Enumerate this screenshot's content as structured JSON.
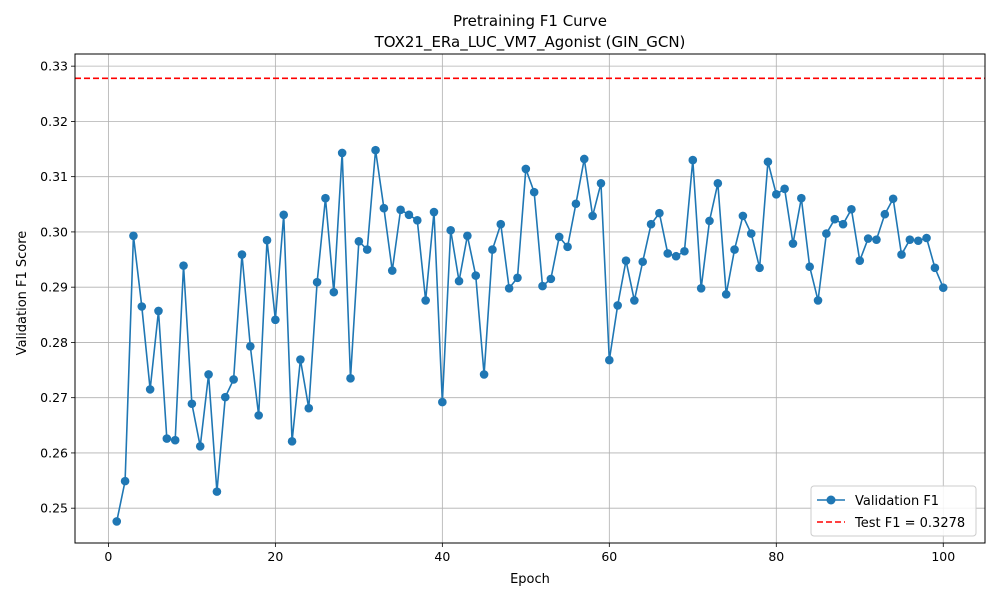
{
  "chart_data": {
    "type": "line",
    "title": "Pretraining F1 Curve",
    "subtitle": "TOX21_ERa_LUC_VM7_Agonist (GIN_GCN)",
    "xlabel": "Epoch",
    "ylabel": "Validation F1 Score",
    "xlim": [
      -4,
      105
    ],
    "ylim": [
      0.2437,
      0.3322
    ],
    "xticks": [
      0,
      20,
      40,
      60,
      80,
      100
    ],
    "yticks": [
      0.25,
      0.26,
      0.27,
      0.28,
      0.29,
      0.3,
      0.31,
      0.32,
      0.33
    ],
    "ytick_labels": [
      "0.25",
      "0.26",
      "0.27",
      "0.28",
      "0.29",
      "0.30",
      "0.31",
      "0.32",
      "0.33"
    ],
    "xtick_labels": [
      "0",
      "20",
      "40",
      "60",
      "80",
      "100"
    ],
    "grid": true,
    "legend_position": "bottom-right",
    "series": [
      {
        "name": "Validation F1",
        "color": "#1f77b4",
        "marker": "circle",
        "x": [
          1,
          2,
          3,
          4,
          5,
          6,
          7,
          8,
          9,
          10,
          11,
          12,
          13,
          14,
          15,
          16,
          17,
          18,
          19,
          20,
          21,
          22,
          23,
          24,
          25,
          26,
          27,
          28,
          29,
          30,
          31,
          32,
          33,
          34,
          35,
          36,
          37,
          38,
          39,
          40,
          41,
          42,
          43,
          44,
          45,
          46,
          47,
          48,
          49,
          50,
          51,
          52,
          53,
          54,
          55,
          56,
          57,
          58,
          59,
          60,
          61,
          62,
          63,
          64,
          65,
          66,
          67,
          68,
          69,
          70,
          71,
          72,
          73,
          74,
          75,
          76,
          77,
          78,
          79,
          80,
          81,
          82,
          83,
          84,
          85,
          86,
          87,
          88,
          89,
          90,
          91,
          92,
          93,
          94,
          95,
          96,
          97,
          98,
          99,
          100
        ],
        "values": [
          0.2476,
          0.2549,
          0.2993,
          0.2865,
          0.2715,
          0.2857,
          0.2626,
          0.2623,
          0.2939,
          0.2689,
          0.2612,
          0.2742,
          0.253,
          0.2701,
          0.2733,
          0.2959,
          0.2793,
          0.2668,
          0.2985,
          0.2841,
          0.3031,
          0.2621,
          0.2769,
          0.2681,
          0.2909,
          0.3061,
          0.2891,
          0.3143,
          0.2735,
          0.2983,
          0.2968,
          0.3148,
          0.3043,
          0.293,
          0.304,
          0.3031,
          0.3021,
          0.2876,
          0.3036,
          0.2692,
          0.3003,
          0.2911,
          0.2993,
          0.2921,
          0.2742,
          0.2968,
          0.3014,
          0.2898,
          0.2917,
          0.3114,
          0.3072,
          0.2902,
          0.2915,
          0.2991,
          0.2973,
          0.3051,
          0.3132,
          0.3029,
          0.3088,
          0.2768,
          0.2867,
          0.2948,
          0.2876,
          0.2946,
          0.3014,
          0.3034,
          0.2961,
          0.2956,
          0.2965,
          0.313,
          0.2898,
          0.302,
          0.3088,
          0.2887,
          0.2968,
          0.3029,
          0.2997,
          0.2935,
          0.3127,
          0.3068,
          0.3078,
          0.2979,
          0.3061,
          0.2937,
          0.2876,
          0.2997,
          0.3023,
          0.3014,
          0.3041,
          0.2948,
          0.2988,
          0.2986,
          0.3032,
          0.306,
          0.2959,
          0.2986,
          0.2984,
          0.2989,
          0.2935,
          0.2899
        ]
      },
      {
        "name": "Test F1 = 0.3278",
        "color": "#ff0000",
        "style": "dashed-horizontal",
        "y": 0.3278
      }
    ]
  }
}
